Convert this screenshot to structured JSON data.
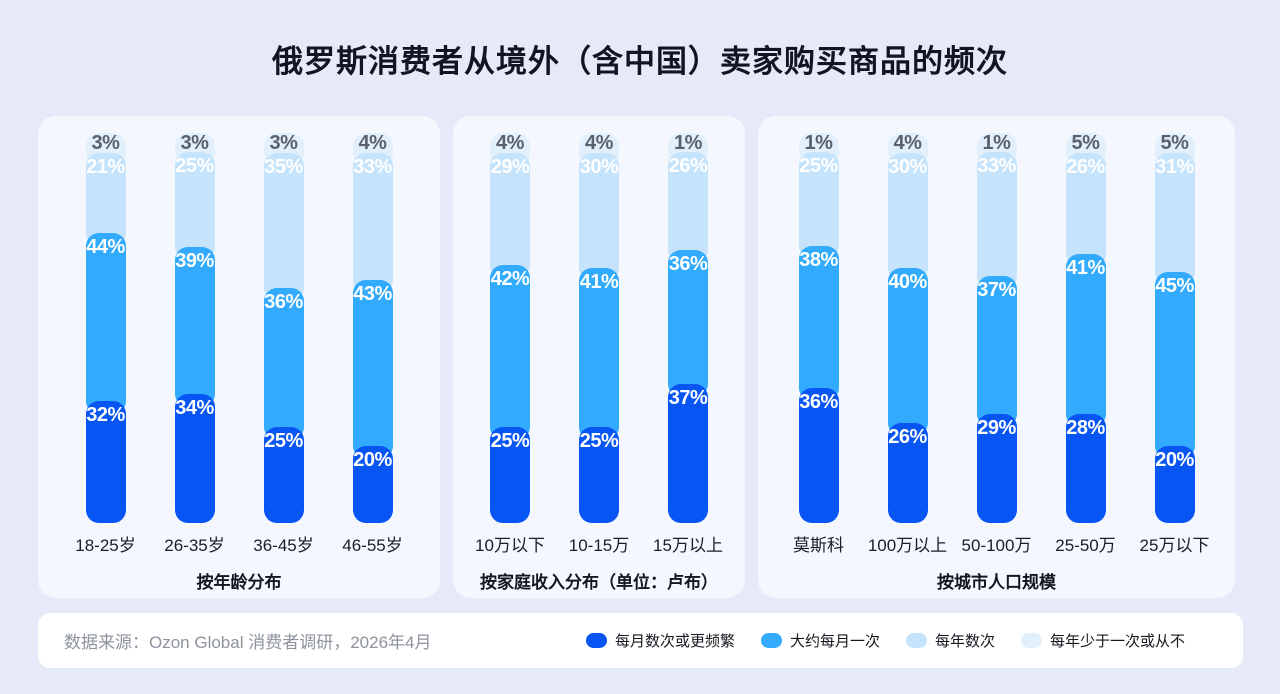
{
  "title": "俄罗斯消费者从境外（含中国）卖家购买商品的频次",
  "source": "数据来源：Ozon Global 消费者调研，2026年4月",
  "colors": {
    "background": "#E6EAF8",
    "panel_background": "#F4F8FE",
    "footer_background": "#FFFFFF",
    "title_text": "#121420",
    "source_text": "#8E939E",
    "top_segment_label_text": "#5B6070"
  },
  "legend": [
    {
      "label": "每月数次或更频繁",
      "color": "#0756F3"
    },
    {
      "label": "大约每月一次",
      "color": "#32AAFD"
    },
    {
      "label": "每年数次",
      "color": "#C5E3FA"
    },
    {
      "label": "每年少于一次或从不",
      "color": "#E2F0FB"
    }
  ],
  "chart_data": [
    {
      "type": "bar",
      "stacked": true,
      "caption": "按年龄分布",
      "categories": [
        "18-25岁",
        "26-35岁",
        "36-45岁",
        "46-55岁"
      ],
      "value_unit": "%",
      "ylim": [
        0,
        100
      ],
      "grid": false,
      "series": [
        {
          "name": "每月数次或更频繁",
          "values": [
            32,
            34,
            25,
            20
          ]
        },
        {
          "name": "大约每月一次",
          "values": [
            44,
            39,
            36,
            43
          ]
        },
        {
          "name": "每年数次",
          "values": [
            21,
            25,
            35,
            33
          ]
        },
        {
          "name": "每年少于一次或从不",
          "values": [
            3,
            3,
            3,
            4
          ]
        }
      ]
    },
    {
      "type": "bar",
      "stacked": true,
      "caption": "按家庭收入分布（单位：卢布）",
      "categories": [
        "10万以下",
        "10-15万",
        "15万以上"
      ],
      "value_unit": "%",
      "ylim": [
        0,
        100
      ],
      "grid": false,
      "series": [
        {
          "name": "每月数次或更频繁",
          "values": [
            25,
            25,
            37
          ]
        },
        {
          "name": "大约每月一次",
          "values": [
            42,
            41,
            36
          ]
        },
        {
          "name": "每年数次",
          "values": [
            29,
            30,
            26
          ]
        },
        {
          "name": "每年少于一次或从不",
          "values": [
            4,
            4,
            1
          ]
        }
      ]
    },
    {
      "type": "bar",
      "stacked": true,
      "caption": "按城市人口规模",
      "categories": [
        "莫斯科",
        "100万以上",
        "50-100万",
        "25-50万",
        "25万以下"
      ],
      "value_unit": "%",
      "ylim": [
        0,
        100
      ],
      "grid": false,
      "series": [
        {
          "name": "每月数次或更频繁",
          "values": [
            36,
            26,
            29,
            28,
            20
          ]
        },
        {
          "name": "大约每月一次",
          "values": [
            38,
            40,
            37,
            41,
            45
          ]
        },
        {
          "name": "每年数次",
          "values": [
            25,
            30,
            33,
            26,
            31
          ]
        },
        {
          "name": "每年少于一次或从不",
          "values": [
            1,
            4,
            1,
            5,
            5
          ]
        }
      ]
    }
  ]
}
